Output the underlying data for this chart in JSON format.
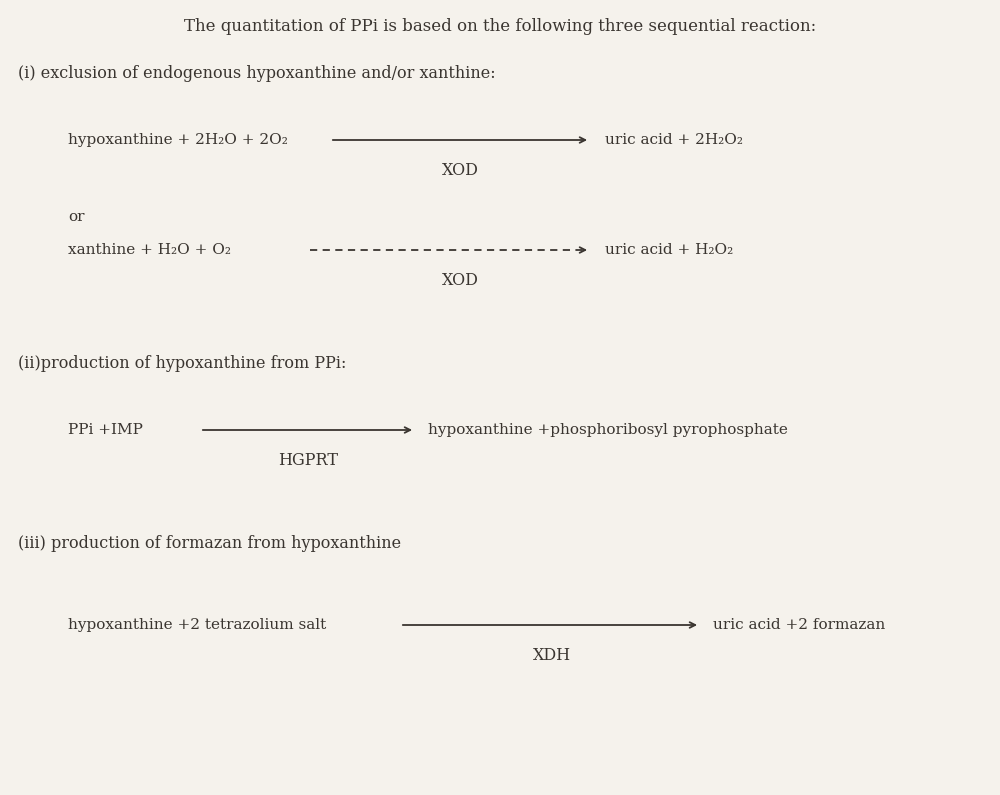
{
  "bg_color": "#f5f2ec",
  "text_color": "#3a3530",
  "title": "The quantitation of PPi is based on the following three sequential reaction:",
  "title_fontsize": 12,
  "sections": [
    {
      "label": "(i) exclusion of endogenous hypoxanthine and/or xanthine:",
      "label_fontsize": 11.5,
      "reactions": [
        {
          "left_text": "hypoxanthine + 2H₂O + 2O₂",
          "arrow_style": "solid",
          "catalyst": "XOD",
          "right_text": "uric acid + 2H₂O₂"
        },
        {
          "left_text": "or",
          "only_text": true
        },
        {
          "left_text": "xanthine + H₂O + O₂",
          "arrow_style": "dashed",
          "catalyst": "XOD",
          "right_text": "uric acid + H₂O₂"
        }
      ]
    },
    {
      "label": "(ii)production of hypoxanthine from PPi:",
      "label_fontsize": 11.5,
      "reactions": [
        {
          "left_text": "PPi +IMP",
          "arrow_style": "solid",
          "catalyst": "HGPRT",
          "right_text": "hypoxanthine +phosphoribosyl pyrophosphate"
        }
      ]
    },
    {
      "label": "(iii) production of formazan from hypoxanthine",
      "label_fontsize": 11.5,
      "reactions": [
        {
          "left_text": "hypoxanthine +2 tetrazolium salt",
          "arrow_style": "solid",
          "catalyst": "XDH",
          "right_text": "uric acid +2 formazan"
        }
      ]
    }
  ]
}
